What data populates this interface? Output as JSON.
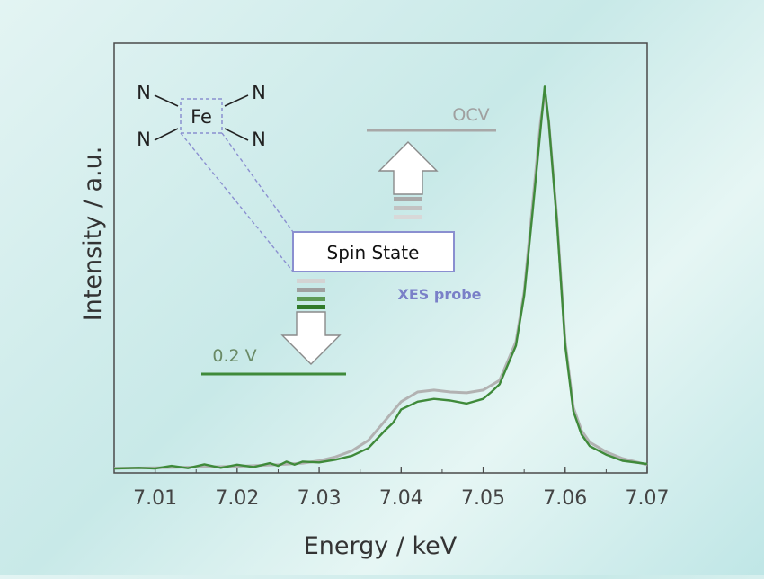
{
  "chart_data": {
    "type": "line",
    "xlabel": "Energy / keV",
    "ylabel": "Intensity / a.u.",
    "xlim": [
      7.005,
      7.07
    ],
    "ylim": [
      0,
      1.0
    ],
    "xticks": [
      "7.01",
      "7.02",
      "7.03",
      "7.04",
      "7.05",
      "7.06",
      "7.07"
    ],
    "grid": false,
    "series": [
      {
        "name": "OCV",
        "color": "#b2b2b2",
        "x": [
          7.005,
          7.01,
          7.015,
          7.02,
          7.025,
          7.028,
          7.03,
          7.032,
          7.034,
          7.036,
          7.038,
          7.04,
          7.042,
          7.044,
          7.046,
          7.048,
          7.05,
          7.052,
          7.054,
          7.055,
          7.056,
          7.057,
          7.0575,
          7.058,
          7.059,
          7.06,
          7.061,
          7.062,
          7.063,
          7.065,
          7.067,
          7.07
        ],
        "y": [
          0.003,
          0.004,
          0.006,
          0.008,
          0.012,
          0.016,
          0.022,
          0.032,
          0.048,
          0.075,
          0.125,
          0.175,
          0.2,
          0.205,
          0.2,
          0.198,
          0.205,
          0.23,
          0.33,
          0.46,
          0.68,
          0.9,
          0.97,
          0.9,
          0.65,
          0.33,
          0.16,
          0.1,
          0.07,
          0.045,
          0.028,
          0.012
        ]
      },
      {
        "name": "0.2 V",
        "color": "#3f8a3a",
        "x": [
          7.005,
          7.008,
          7.01,
          7.012,
          7.014,
          7.016,
          7.018,
          7.02,
          7.022,
          7.024,
          7.025,
          7.026,
          7.027,
          7.028,
          7.03,
          7.032,
          7.034,
          7.036,
          7.038,
          7.039,
          7.04,
          7.042,
          7.044,
          7.046,
          7.048,
          7.05,
          7.051,
          7.052,
          7.054,
          7.055,
          7.056,
          7.057,
          7.0575,
          7.058,
          7.059,
          7.06,
          7.061,
          7.062,
          7.063,
          7.065,
          7.067,
          7.07
        ],
        "y": [
          0.002,
          0.004,
          0.002,
          0.009,
          0.003,
          0.013,
          0.004,
          0.012,
          0.006,
          0.016,
          0.009,
          0.02,
          0.012,
          0.02,
          0.018,
          0.025,
          0.035,
          0.055,
          0.1,
          0.12,
          0.155,
          0.175,
          0.182,
          0.178,
          0.17,
          0.182,
          0.2,
          0.22,
          0.32,
          0.45,
          0.66,
          0.88,
          0.99,
          0.9,
          0.64,
          0.32,
          0.15,
          0.09,
          0.06,
          0.038,
          0.022,
          0.014
        ]
      }
    ]
  },
  "diagram": {
    "fe_label": "Fe",
    "n_label": "N",
    "spin_state_label": "Spin State",
    "xes_probe_label": "XES probe",
    "ocv_label": "OCV",
    "voltage_label": "0.2 V",
    "box_color": "#8a8fd0",
    "xes_color": "#7a80c8",
    "ocv_color": "#a0a0a0",
    "voltage_color": "#3f8a3a"
  }
}
